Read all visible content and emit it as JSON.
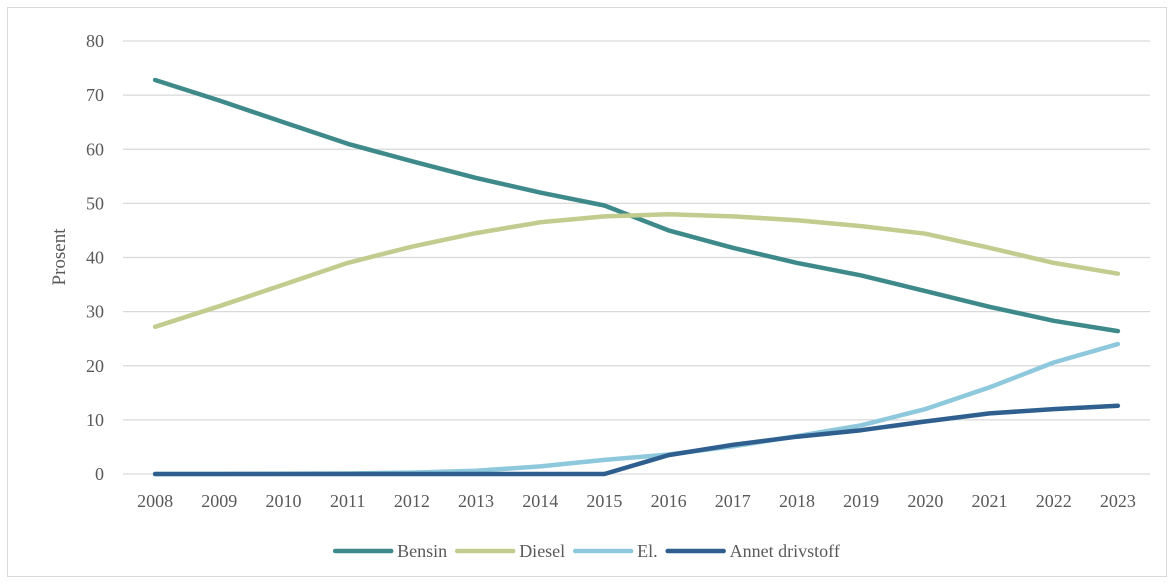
{
  "chart_data": {
    "type": "line",
    "ylabel": "Prosent",
    "xlabel": "",
    "ylim": [
      0,
      80
    ],
    "yticks": [
      "0",
      "10",
      "20",
      "30",
      "40",
      "50",
      "60",
      "70",
      "80"
    ],
    "categories": [
      "2008",
      "2009",
      "2010",
      "2011",
      "2012",
      "2013",
      "2014",
      "2015",
      "2016",
      "2017",
      "2018",
      "2019",
      "2020",
      "2021",
      "2022",
      "2023"
    ],
    "grid": true,
    "legend_position": "bottom",
    "series": [
      {
        "name": "Bensin",
        "color": "#3e8a8a",
        "values": [
          72.8,
          69.0,
          65.0,
          61.0,
          57.8,
          54.7,
          52.0,
          49.6,
          45.0,
          41.8,
          39.0,
          36.7,
          33.8,
          30.9,
          28.3,
          26.4
        ]
      },
      {
        "name": "Diesel",
        "color": "#c1cc8e",
        "values": [
          27.2,
          31.0,
          35.0,
          39.0,
          42.0,
          44.5,
          46.5,
          47.6,
          48.0,
          47.6,
          46.9,
          45.8,
          44.4,
          41.8,
          39.0,
          37.0
        ]
      },
      {
        "name": "El.",
        "color": "#8ec8dc",
        "values": [
          0.0,
          0.0,
          0.05,
          0.1,
          0.25,
          0.6,
          1.4,
          2.6,
          3.6,
          5.1,
          7.0,
          9.0,
          12.0,
          16.0,
          20.6,
          24.0
        ]
      },
      {
        "name": "Annet drivstoff",
        "color": "#2f5f8f",
        "values": [
          0.0,
          0.0,
          0.0,
          0.0,
          0.0,
          0.0,
          0.0,
          0.0,
          3.5,
          5.4,
          6.9,
          8.1,
          9.7,
          11.2,
          12.0,
          12.6
        ]
      }
    ]
  }
}
